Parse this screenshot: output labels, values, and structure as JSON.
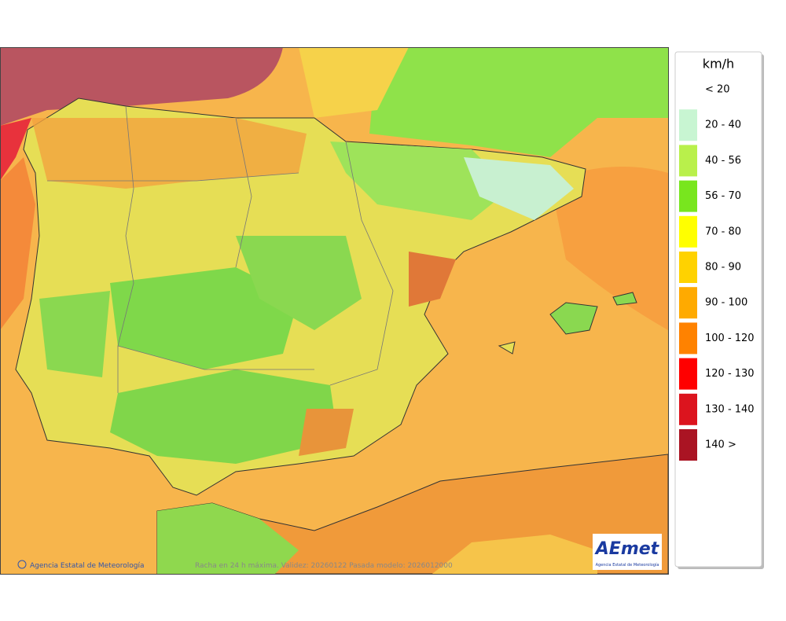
{
  "legend": {
    "title": "km/h",
    "items": [
      {
        "label": "< 20",
        "color": "#ffffff"
      },
      {
        "label": "20 - 40",
        "color": "#c8f5d2"
      },
      {
        "label": "40 - 56",
        "color": "#b9f04b"
      },
      {
        "label": "56 - 70",
        "color": "#78e61e"
      },
      {
        "label": "70 - 80",
        "color": "#ffff00"
      },
      {
        "label": "80 - 90",
        "color": "#ffd200"
      },
      {
        "label": "90 - 100",
        "color": "#ffaa00"
      },
      {
        "label": "100 - 120",
        "color": "#ff8200"
      },
      {
        "label": "120 - 130",
        "color": "#ff0000"
      },
      {
        "label": "130 - 140",
        "color": "#dc141e"
      },
      {
        "label": "140 >",
        "color": "#aa1423"
      }
    ]
  },
  "map": {
    "credit": "Agencia Estatal de Meteorología",
    "caption": "Racha en 24 h máxima. Validez: 20260122 Pasada modelo: 2026012000",
    "logo": {
      "name": "AEmet",
      "subtitle": "Agencia Estatal de Meteorología"
    }
  }
}
